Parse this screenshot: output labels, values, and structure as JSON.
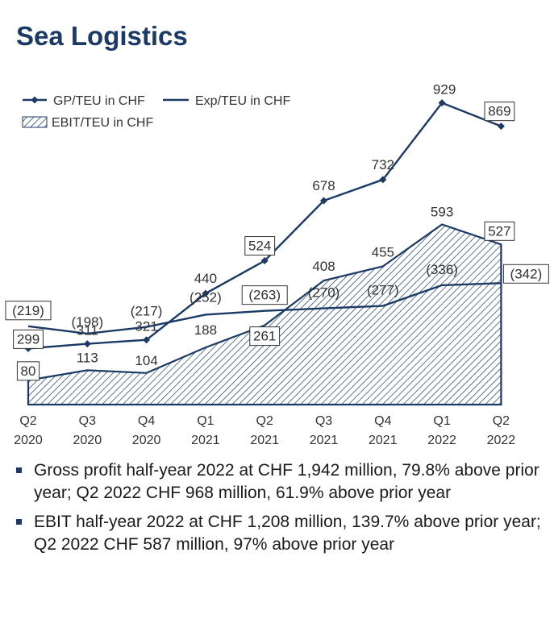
{
  "title": "Sea Logistics",
  "chart_data": {
    "type": "line",
    "categories": [
      "Q2 2020",
      "Q3 2020",
      "Q4 2020",
      "Q1 2021",
      "Q2 2021",
      "Q3 2021",
      "Q4 2021",
      "Q1 2022",
      "Q2 2022"
    ],
    "category_lines": [
      [
        "Q2",
        "2020"
      ],
      [
        "Q3",
        "2020"
      ],
      [
        "Q4",
        "2020"
      ],
      [
        "Q1",
        "2021"
      ],
      [
        "Q2",
        "2021"
      ],
      [
        "Q3",
        "2021"
      ],
      [
        "Q4",
        "2021"
      ],
      [
        "Q1",
        "2022"
      ],
      [
        "Q2",
        "2022"
      ]
    ],
    "series": [
      {
        "name": "GP/TEU in CHF",
        "kind": "line-marker",
        "values": [
          299,
          311,
          321,
          440,
          524,
          678,
          732,
          929,
          869
        ],
        "labels": [
          "299",
          "311",
          "321",
          "440",
          "524",
          "678",
          "732",
          "929",
          "869"
        ],
        "boxed": [
          true,
          false,
          false,
          false,
          true,
          false,
          false,
          false,
          true
        ]
      },
      {
        "name": "Exp/TEU in CHF",
        "kind": "line",
        "values": [
          -219,
          -198,
          -217,
          -252,
          -263,
          -270,
          -277,
          -336,
          -342
        ],
        "labels": [
          "(219)",
          "(198)",
          "(217)",
          "(252)",
          "(263)",
          "(270)",
          "(277)",
          "(336)",
          "(342)"
        ],
        "boxed": [
          true,
          false,
          false,
          false,
          true,
          false,
          false,
          false,
          true
        ]
      },
      {
        "name": "EBIT/TEU in CHF",
        "kind": "area-hatched",
        "values": [
          80,
          113,
          104,
          188,
          261,
          408,
          455,
          593,
          527
        ],
        "labels": [
          "80",
          "113",
          "104",
          "188",
          "261",
          "408",
          "455",
          "593",
          "527"
        ],
        "boxed": [
          true,
          false,
          false,
          false,
          true,
          false,
          false,
          false,
          true
        ]
      }
    ],
    "legend": [
      "GP/TEU in CHF",
      "Exp/TEU in CHF",
      "EBIT/TEU in CHF"
    ],
    "legend_position": "top-left",
    "colors": {
      "line": "#1b3a66",
      "text": "#333333"
    }
  },
  "bullets": [
    "Gross profit half-year 2022 at CHF 1,942 million, 79.8% above prior year; Q2 2022 CHF 968 million, 61.9% above prior year",
    "EBIT half-year 2022 at CHF 1,208 million, 139.7% above prior year; Q2 2022 CHF 587 million, 97% above prior year"
  ]
}
